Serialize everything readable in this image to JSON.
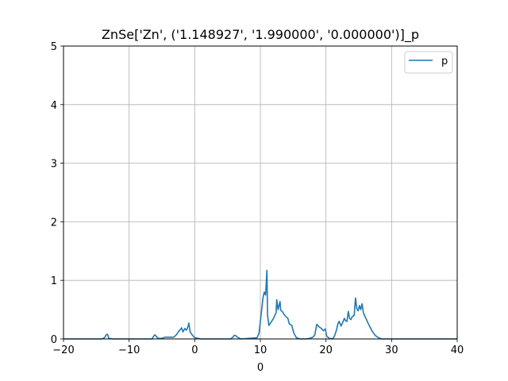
{
  "chart_data": {
    "type": "line",
    "title": "ZnSe['Zn', ('1.148927', '1.990000', '0.000000')]_p",
    "xlabel": "0",
    "ylabel": "",
    "xlim": [
      -20,
      40
    ],
    "ylim": [
      0,
      5
    ],
    "xticks": [
      -20,
      -10,
      0,
      10,
      20,
      30,
      40
    ],
    "yticks": [
      0,
      1,
      2,
      3,
      4,
      5
    ],
    "xtick_labels": [
      "−20",
      "−10",
      "0",
      "10",
      "20",
      "30",
      "40"
    ],
    "ytick_labels": [
      "0",
      "1",
      "2",
      "3",
      "4",
      "5"
    ],
    "grid": true,
    "legend_position": "top-right",
    "colors": {
      "series": "#1f77b4",
      "grid": "#b0b0b0",
      "axes": "#000000"
    },
    "series": [
      {
        "name": "p",
        "x": [
          -20,
          -14.2,
          -13.9,
          -13.7,
          -13.5,
          -13.3,
          -13.1,
          -12.5,
          -6.5,
          -6.3,
          -6.1,
          -5.9,
          -5.6,
          -5.0,
          -4.5,
          -4.0,
          -3.2,
          -2.8,
          -2.5,
          -2.2,
          -2.0,
          -1.8,
          -1.5,
          -1.3,
          -1.2,
          -1.0,
          -0.9,
          -0.7,
          -0.4,
          0.0,
          0.5,
          1.0,
          5.5,
          5.8,
          6.0,
          6.2,
          6.5,
          7.0,
          9.5,
          9.8,
          10.0,
          10.2,
          10.4,
          10.6,
          10.8,
          10.9,
          11.0,
          11.1,
          11.3,
          11.6,
          12.0,
          12.4,
          12.5,
          12.7,
          12.8,
          13.0,
          13.1,
          13.2,
          13.4,
          13.6,
          13.9,
          14.2,
          14.4,
          14.8,
          15.1,
          15.5,
          16.0,
          17.0,
          17.5,
          18.0,
          18.3,
          18.6,
          19.0,
          19.3,
          19.6,
          19.9,
          20.1,
          20.5,
          21.0,
          21.3,
          21.6,
          21.8,
          22.0,
          22.3,
          22.5,
          22.8,
          23.0,
          23.2,
          23.4,
          23.6,
          23.8,
          24.0,
          24.3,
          24.5,
          24.7,
          24.9,
          25.1,
          25.3,
          25.5,
          25.7,
          26.0,
          26.5,
          27.0,
          27.5,
          28.0,
          28.5,
          29.0,
          40
        ],
        "y": [
          0,
          0,
          0.01,
          0.03,
          0.07,
          0.08,
          0.01,
          0,
          0,
          0.04,
          0.07,
          0.05,
          0.01,
          0.01,
          0.03,
          0.03,
          0.03,
          0.07,
          0.12,
          0.16,
          0.19,
          0.12,
          0.18,
          0.15,
          0.16,
          0.22,
          0.27,
          0.12,
          0.07,
          0.02,
          0.01,
          0,
          0,
          0.03,
          0.06,
          0.06,
          0.03,
          0,
          0.02,
          0.1,
          0.3,
          0.5,
          0.7,
          0.8,
          0.75,
          0.95,
          1.17,
          0.4,
          0.23,
          0.28,
          0.35,
          0.45,
          0.67,
          0.5,
          0.55,
          0.64,
          0.49,
          0.48,
          0.46,
          0.42,
          0.38,
          0.35,
          0.26,
          0.23,
          0.1,
          0.02,
          0,
          0,
          0.01,
          0.03,
          0.07,
          0.25,
          0.2,
          0.18,
          0.14,
          0.17,
          0.05,
          0.01,
          0,
          0.05,
          0.15,
          0.25,
          0.3,
          0.22,
          0.27,
          0.35,
          0.31,
          0.3,
          0.47,
          0.35,
          0.33,
          0.38,
          0.4,
          0.7,
          0.52,
          0.48,
          0.57,
          0.5,
          0.6,
          0.45,
          0.37,
          0.25,
          0.14,
          0.06,
          0.02,
          0,
          0,
          0
        ]
      }
    ]
  }
}
